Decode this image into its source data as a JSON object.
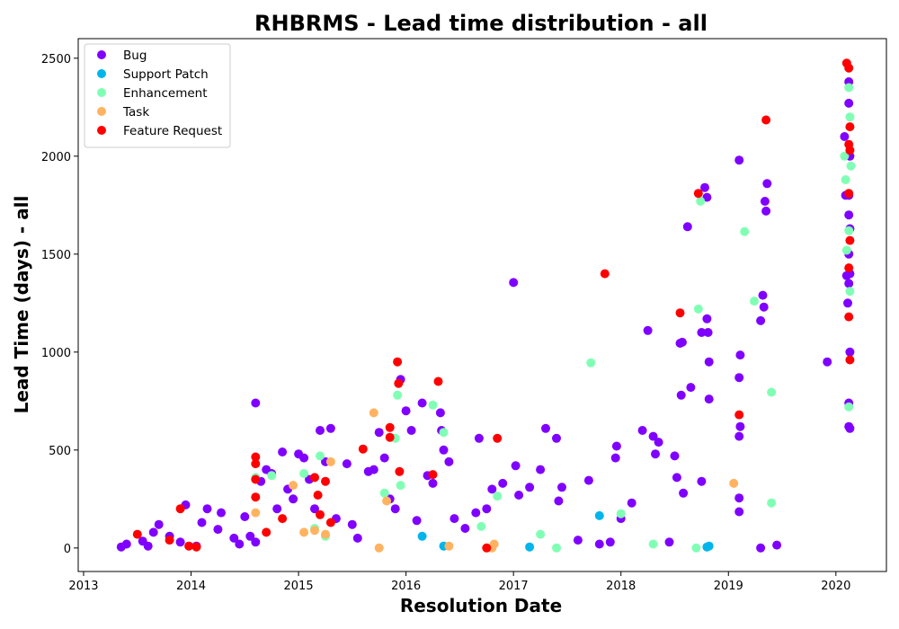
{
  "chart_data": {
    "type": "scatter",
    "title": "RHBRMS - Lead time distribution - all",
    "xlabel": "Resolution Date",
    "ylabel": "Lead Time (days) - all",
    "xlim": [
      2012.95,
      2020.47
    ],
    "ylim": [
      -120,
      2600
    ],
    "x_ticks": [
      2013,
      2014,
      2015,
      2016,
      2017,
      2018,
      2019,
      2020
    ],
    "y_ticks": [
      0,
      500,
      1000,
      1500,
      2000,
      2500
    ],
    "grid": false,
    "legend_position": "top-left",
    "series": [
      {
        "name": "Bug",
        "color": "#8000ff",
        "points": [
          [
            2013.35,
            5
          ],
          [
            2013.4,
            20
          ],
          [
            2013.55,
            35
          ],
          [
            2013.6,
            10
          ],
          [
            2013.65,
            80
          ],
          [
            2013.7,
            120
          ],
          [
            2013.8,
            60
          ],
          [
            2013.9,
            30
          ],
          [
            2013.95,
            220
          ],
          [
            2014.05,
            10
          ],
          [
            2014.1,
            130
          ],
          [
            2014.15,
            200
          ],
          [
            2014.25,
            95
          ],
          [
            2014.28,
            180
          ],
          [
            2014.4,
            50
          ],
          [
            2014.45,
            20
          ],
          [
            2014.5,
            160
          ],
          [
            2014.55,
            60
          ],
          [
            2014.6,
            30
          ],
          [
            2014.6,
            740
          ],
          [
            2014.65,
            340
          ],
          [
            2014.7,
            400
          ],
          [
            2014.75,
            380
          ],
          [
            2014.8,
            200
          ],
          [
            2014.85,
            490
          ],
          [
            2014.9,
            300
          ],
          [
            2014.95,
            250
          ],
          [
            2015.0,
            480
          ],
          [
            2015.05,
            460
          ],
          [
            2015.1,
            350
          ],
          [
            2015.15,
            200
          ],
          [
            2015.2,
            600
          ],
          [
            2015.25,
            440
          ],
          [
            2015.3,
            610
          ],
          [
            2015.35,
            150
          ],
          [
            2015.45,
            430
          ],
          [
            2015.5,
            120
          ],
          [
            2015.55,
            50
          ],
          [
            2015.65,
            390
          ],
          [
            2015.7,
            400
          ],
          [
            2015.75,
            590
          ],
          [
            2015.8,
            460
          ],
          [
            2015.85,
            250
          ],
          [
            2015.9,
            200
          ],
          [
            2015.95,
            860
          ],
          [
            2016.0,
            700
          ],
          [
            2016.05,
            600
          ],
          [
            2016.1,
            140
          ],
          [
            2016.15,
            740
          ],
          [
            2016.2,
            370
          ],
          [
            2016.25,
            330
          ],
          [
            2016.32,
            690
          ],
          [
            2016.33,
            600
          ],
          [
            2016.35,
            500
          ],
          [
            2016.4,
            440
          ],
          [
            2016.45,
            150
          ],
          [
            2016.55,
            100
          ],
          [
            2016.65,
            180
          ],
          [
            2016.68,
            560
          ],
          [
            2016.75,
            200
          ],
          [
            2016.8,
            300
          ],
          [
            2016.9,
            330
          ],
          [
            2017.0,
            1355
          ],
          [
            2017.02,
            420
          ],
          [
            2017.05,
            270
          ],
          [
            2017.15,
            310
          ],
          [
            2017.25,
            400
          ],
          [
            2017.3,
            610
          ],
          [
            2017.4,
            560
          ],
          [
            2017.42,
            240
          ],
          [
            2017.45,
            310
          ],
          [
            2017.6,
            40
          ],
          [
            2017.7,
            345
          ],
          [
            2017.8,
            20
          ],
          [
            2017.9,
            30
          ],
          [
            2017.95,
            460
          ],
          [
            2017.96,
            520
          ],
          [
            2018.0,
            150
          ],
          [
            2018.1,
            230
          ],
          [
            2018.2,
            600
          ],
          [
            2018.25,
            1110
          ],
          [
            2018.3,
            570
          ],
          [
            2018.32,
            480
          ],
          [
            2018.35,
            540
          ],
          [
            2018.45,
            30
          ],
          [
            2018.5,
            470
          ],
          [
            2018.52,
            360
          ],
          [
            2018.55,
            1045
          ],
          [
            2018.56,
            780
          ],
          [
            2018.57,
            1050
          ],
          [
            2018.58,
            280
          ],
          [
            2018.62,
            1640
          ],
          [
            2018.65,
            820
          ],
          [
            2018.75,
            1100
          ],
          [
            2018.78,
            1840
          ],
          [
            2018.8,
            1790
          ],
          [
            2018.8,
            1170
          ],
          [
            2018.81,
            1100
          ],
          [
            2018.82,
            950
          ],
          [
            2018.82,
            760
          ],
          [
            2018.75,
            340
          ],
          [
            2019.1,
            1980
          ],
          [
            2019.11,
            985
          ],
          [
            2019.1,
            870
          ],
          [
            2019.11,
            620
          ],
          [
            2019.1,
            570
          ],
          [
            2019.1,
            255
          ],
          [
            2019.1,
            185
          ],
          [
            2019.3,
            1160
          ],
          [
            2019.32,
            1290
          ],
          [
            2019.33,
            1230
          ],
          [
            2019.34,
            1770
          ],
          [
            2019.35,
            1720
          ],
          [
            2019.36,
            1860
          ],
          [
            2019.3,
            0
          ],
          [
            2019.45,
            15
          ],
          [
            2019.92,
            950
          ],
          [
            2020.08,
            2100
          ],
          [
            2020.12,
            2380
          ],
          [
            2020.12,
            2270
          ],
          [
            2020.13,
            2000
          ],
          [
            2020.12,
            1800
          ],
          [
            2020.12,
            1700
          ],
          [
            2020.13,
            1630
          ],
          [
            2020.12,
            1500
          ],
          [
            2020.13,
            1400
          ],
          [
            2020.12,
            1350
          ],
          [
            2020.11,
            1250
          ],
          [
            2020.13,
            1000
          ],
          [
            2020.12,
            740
          ],
          [
            2020.12,
            620
          ],
          [
            2020.13,
            610
          ],
          [
            2020.1,
            1390
          ],
          [
            2020.09,
            1800
          ]
        ]
      },
      {
        "name": "Support Patch",
        "color": "#00b5eb",
        "points": [
          [
            2016.15,
            60
          ],
          [
            2016.35,
            10
          ],
          [
            2017.15,
            5
          ],
          [
            2017.8,
            165
          ],
          [
            2018.8,
            5
          ],
          [
            2018.82,
            10
          ]
        ]
      },
      {
        "name": "Enhancement",
        "color": "#80ffb4",
        "points": [
          [
            2014.6,
            360
          ],
          [
            2014.75,
            370
          ],
          [
            2015.05,
            380
          ],
          [
            2015.2,
            470
          ],
          [
            2015.15,
            100
          ],
          [
            2015.25,
            60
          ],
          [
            2015.8,
            280
          ],
          [
            2015.9,
            560
          ],
          [
            2015.92,
            780
          ],
          [
            2015.95,
            320
          ],
          [
            2016.25,
            730
          ],
          [
            2016.35,
            590
          ],
          [
            2016.7,
            110
          ],
          [
            2016.85,
            265
          ],
          [
            2017.25,
            70
          ],
          [
            2017.4,
            0
          ],
          [
            2017.72,
            945
          ],
          [
            2018.0,
            175
          ],
          [
            2018.3,
            20
          ],
          [
            2018.7,
            0
          ],
          [
            2018.72,
            1220
          ],
          [
            2018.74,
            1770
          ],
          [
            2019.15,
            1615
          ],
          [
            2019.24,
            1260
          ],
          [
            2019.4,
            795
          ],
          [
            2019.4,
            230
          ],
          [
            2020.08,
            2000
          ],
          [
            2020.09,
            1880
          ],
          [
            2020.1,
            1520
          ],
          [
            2020.12,
            2350
          ],
          [
            2020.13,
            2200
          ],
          [
            2020.14,
            1950
          ],
          [
            2020.12,
            1620
          ],
          [
            2020.13,
            1310
          ],
          [
            2020.12,
            720
          ]
        ]
      },
      {
        "name": "Task",
        "color": "#ffb360",
        "points": [
          [
            2014.6,
            180
          ],
          [
            2014.95,
            320
          ],
          [
            2015.05,
            80
          ],
          [
            2015.15,
            90
          ],
          [
            2015.25,
            70
          ],
          [
            2015.3,
            440
          ],
          [
            2015.7,
            690
          ],
          [
            2015.75,
            0
          ],
          [
            2015.82,
            240
          ],
          [
            2016.4,
            10
          ],
          [
            2016.8,
            0
          ],
          [
            2016.82,
            20
          ],
          [
            2019.05,
            330
          ]
        ]
      },
      {
        "name": "Feature Request",
        "color": "#ff0000",
        "points": [
          [
            2013.5,
            70
          ],
          [
            2013.8,
            40
          ],
          [
            2013.9,
            200
          ],
          [
            2013.98,
            10
          ],
          [
            2014.05,
            5
          ],
          [
            2014.6,
            465
          ],
          [
            2014.6,
            430
          ],
          [
            2014.6,
            350
          ],
          [
            2014.6,
            260
          ],
          [
            2014.7,
            80
          ],
          [
            2014.85,
            150
          ],
          [
            2015.15,
            360
          ],
          [
            2015.18,
            270
          ],
          [
            2015.2,
            170
          ],
          [
            2015.25,
            340
          ],
          [
            2015.3,
            130
          ],
          [
            2015.6,
            505
          ],
          [
            2015.85,
            615
          ],
          [
            2015.85,
            565
          ],
          [
            2015.92,
            950
          ],
          [
            2015.93,
            840
          ],
          [
            2015.94,
            390
          ],
          [
            2016.25,
            375
          ],
          [
            2016.3,
            850
          ],
          [
            2016.75,
            0
          ],
          [
            2016.85,
            560
          ],
          [
            2017.85,
            1400
          ],
          [
            2018.55,
            1200
          ],
          [
            2018.72,
            1810
          ],
          [
            2019.1,
            680
          ],
          [
            2019.35,
            2185
          ],
          [
            2020.1,
            2475
          ],
          [
            2020.12,
            2450
          ],
          [
            2020.13,
            2150
          ],
          [
            2020.12,
            2060
          ],
          [
            2020.13,
            2030
          ],
          [
            2020.12,
            1810
          ],
          [
            2020.13,
            1570
          ],
          [
            2020.12,
            1430
          ],
          [
            2020.12,
            1180
          ],
          [
            2020.13,
            960
          ]
        ]
      }
    ]
  }
}
